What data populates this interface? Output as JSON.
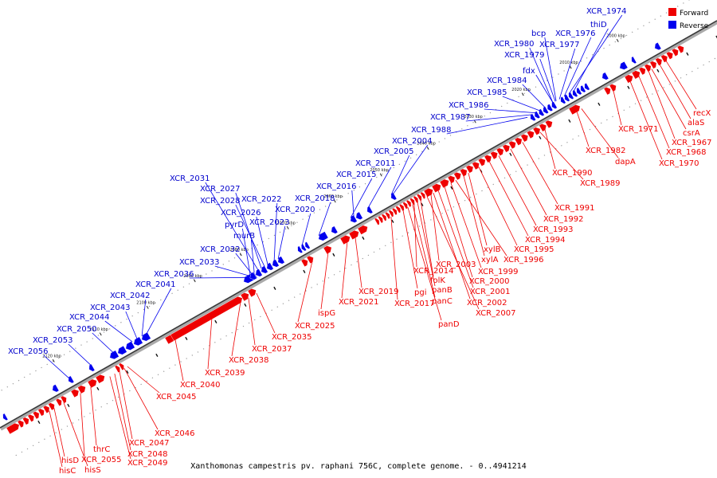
{
  "caption": "Xanthomonas campestris pv. raphani 756C, complete genome. - 0..4941214",
  "legend": {
    "forward": "Forward",
    "reverse": "Reverse"
  },
  "colors": {
    "forward": "#ee0000",
    "reverse": "#0000ee",
    "axis": "#999999"
  },
  "kbp_ticks": [
    "2000 kbp",
    "2010 kbp",
    "2020 kbp",
    "2030 kbp",
    "2040 kbp",
    "2050 kbp",
    "2060 kbp",
    "2070 kbp",
    "2080 kbp",
    "2090 kbp",
    "2100 kbp",
    "2110 kbp",
    "2120 kbp"
  ],
  "reverse_labels": [
    "XCR_1974",
    "thiD",
    "bcp",
    "XCR_1976",
    "XCR_1980",
    "XCR_1977",
    "XCR_1979",
    "fdx",
    "XCR_1984",
    "XCR_1985",
    "XCR_1986",
    "XCR_1987",
    "XCR_1988",
    "XCR_2004",
    "XCR_2005",
    "XCR_2011",
    "XCR_2015",
    "XCR_2016",
    "XCR_2018",
    "XCR_2031",
    "XCR_2027",
    "XCR_2028",
    "XCR_2022",
    "XCR_2026",
    "pyrD",
    "XCR_2023",
    "XCR_2020",
    "murB",
    "XCR_2032",
    "XCR_2033",
    "XCR_2036",
    "XCR_2041",
    "XCR_2042",
    "XCR_2043",
    "XCR_2044",
    "XCR_2050",
    "XCR_2053",
    "XCR_2056"
  ],
  "forward_labels": [
    "recX",
    "alaS",
    "csrA",
    "XCR_1967",
    "XCR_1968",
    "XCR_1970",
    "XCR_1971",
    "XCR_1982",
    "dapA",
    "XCR_1990",
    "XCR_1989",
    "XCR_1991",
    "XCR_1992",
    "XCR_1993",
    "XCR_1994",
    "XCR_1995",
    "xylB",
    "xylA",
    "XCR_1996",
    "XCR_1999",
    "XCR_2003",
    "XCR_2000",
    "XCR_2001",
    "XCR_2002",
    "XCR_2007",
    "XCR_2014",
    "folK",
    "panB",
    "panC",
    "panD",
    "pgi",
    "XCR_2017",
    "XCR_2019",
    "XCR_2021",
    "ispG",
    "XCR_2025",
    "XCR_2035",
    "XCR_2037",
    "XCR_2038",
    "XCR_2039",
    "XCR_2040",
    "XCR_2045",
    "XCR_2046",
    "XCR_2047",
    "XCR_2048",
    "XCR_2049",
    "thrC",
    "XCR_2055",
    "hisD",
    "hisS",
    "hisC"
  ]
}
